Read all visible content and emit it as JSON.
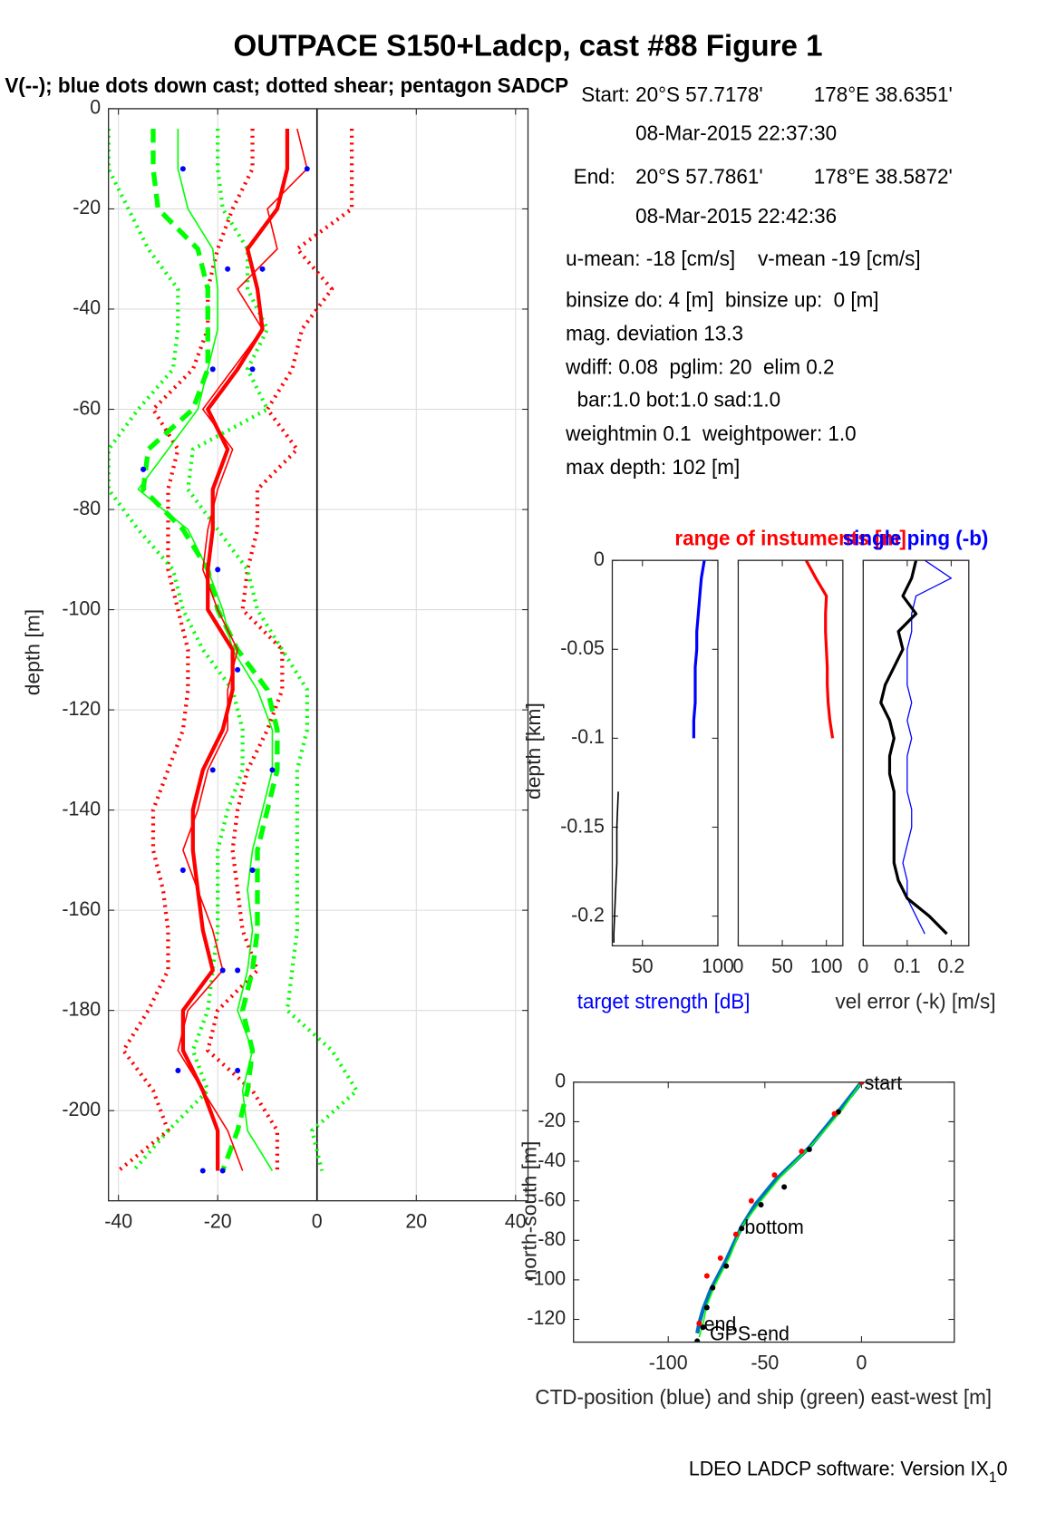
{
  "annotations": [
    "Start:",
    "20°S 57.7178'",
    "178°E 38.6351'",
    "08-Mar-2015 22:37:30",
    "End:",
    "20°S 57.7861'",
    "178°E 38.5872'",
    "08-Mar-2015 22:42:36",
    "u-mean: -18 [cm/s]    v-mean -19 [cm/s]",
    "binsize do: 4 [m]  binsize up:  0 [m]",
    "mag. deviation 13.3",
    "wdiff: 0.08  pglim: 20  elim 0.2",
    "  bar:1.0 bot:1.0 sad:1.0",
    "weightmin 0.1  weightpower: 1.0",
    "max depth: 102 [m]"
  ],
  "footer": "LDEO LADCP software: Version IX",
  "footer_sub": "1",
  "footer_tail": "0",
  "chart_data": [
    {
      "type": "profile",
      "title": "OUTPACE S150+Ladcp, cast #88  Figure 1",
      "subtitle": "V(--); blue dots down cast; dotted shear; pentagon SADCP",
      "ylabel": "depth [m]",
      "grid": true,
      "zeroline": true,
      "xlim": [
        -42,
        42.5
      ],
      "xticks": [
        -40,
        -20,
        0,
        20,
        40
      ],
      "ylim": [
        -218,
        0
      ],
      "yticks": [
        0,
        -20,
        -40,
        -60,
        -80,
        -100,
        -120,
        -140,
        -160,
        -180,
        -200
      ],
      "depth": [
        -4,
        -12,
        -20,
        -28,
        -36,
        -44,
        -52,
        -60,
        -68,
        -76,
        -84,
        -92,
        -100,
        -108,
        -116,
        -124,
        -132,
        -140,
        -148,
        -156,
        -164,
        -172,
        -180,
        -188,
        -196,
        -204,
        -212
      ],
      "series": [
        {
          "color": "#ff0000",
          "style": "dotted",
          "width": 4,
          "values": [
            -13,
            -13,
            -17,
            -20,
            -22,
            -22,
            -25,
            -33,
            -28,
            -30,
            -30,
            -30,
            -28,
            -26,
            -26,
            -27,
            -30,
            -33,
            -33,
            -31,
            -30,
            -30,
            -34,
            -39,
            -33,
            -30,
            -40
          ]
        },
        {
          "color": "#ff0000",
          "style": "dotted",
          "width": 4,
          "values": [
            7,
            7,
            7,
            -4,
            3,
            -3,
            -5,
            -10,
            -4,
            -12,
            -12,
            -14,
            -15,
            -7,
            -7,
            -10,
            -14,
            -16,
            -17,
            -16,
            -15,
            -12,
            -20,
            -22,
            -13,
            -8,
            -8
          ]
        },
        {
          "color": "#00ff00",
          "style": "dotted",
          "width": 4,
          "values": [
            -42,
            -42,
            -38,
            -34,
            -28,
            -28,
            -29,
            -36,
            -42,
            -42,
            -36,
            -29,
            -27,
            -23,
            -17,
            -15,
            -15,
            -18,
            -20,
            -20,
            -20,
            -21,
            -22,
            -25,
            -22,
            -30,
            -37
          ]
        },
        {
          "color": "#00ff00",
          "style": "dotted",
          "width": 4,
          "values": [
            -20,
            -20,
            -19,
            -14,
            -14,
            -10,
            -14,
            -10,
            -25,
            -26,
            -20,
            -14,
            -12,
            -7,
            -2,
            -2,
            -4,
            -4,
            -4,
            -4,
            -4,
            -5,
            -6,
            3,
            8,
            -1,
            1
          ]
        },
        {
          "color": "#00ff00",
          "style": "solid",
          "width": 1.5,
          "values": [
            -28,
            -28,
            -26,
            -21,
            -20,
            -20,
            -22,
            -24,
            -30,
            -36,
            -26,
            -22,
            -19,
            -17,
            -12,
            -9,
            -9,
            -11,
            -13,
            -14,
            -13,
            -14,
            -16,
            -13,
            -15,
            -14,
            -9
          ]
        },
        {
          "color": "#00ff00",
          "style": "dashed",
          "width": 5,
          "values": [
            -33,
            -33,
            -32,
            -24,
            -22,
            -22,
            -22,
            -25,
            -34,
            -35,
            -27,
            -22,
            -20,
            -16,
            -10,
            -8,
            -8,
            -10,
            -12,
            -12,
            -12,
            -13,
            -15,
            -13,
            -14,
            -16,
            -19
          ]
        },
        {
          "color": "#ff0000",
          "style": "solid",
          "width": 1.5,
          "values": [
            -4,
            -2,
            -10,
            -8,
            -16,
            -11,
            -17,
            -23,
            -17,
            -20,
            -22,
            -23,
            -20,
            -16,
            -18,
            -18,
            -22,
            -24,
            -27,
            -24,
            -21,
            -19,
            -26,
            -28,
            -23,
            -18,
            -15
          ]
        },
        {
          "color": "#ff0000",
          "style": "solid",
          "width": 4,
          "values": [
            -6,
            -6,
            -8,
            -14,
            -12,
            -11,
            -16,
            -22,
            -18,
            -21,
            -21,
            -22,
            -22,
            -17,
            -17,
            -19,
            -23,
            -25,
            -25,
            -24,
            -23,
            -21,
            -27,
            -27,
            -23,
            -20,
            -20
          ]
        },
        {
          "color": "#0000ff",
          "marker": "dot",
          "depth": [
            -12,
            -12,
            -32,
            -32,
            -52,
            -52,
            -72,
            -92,
            -112,
            -132,
            -132,
            -152,
            -152,
            -172,
            -172,
            -192,
            -192,
            -212,
            -212
          ],
          "values": [
            -27,
            -2,
            -18,
            -11,
            -21,
            -13,
            -35,
            -20,
            -16,
            -21,
            -9,
            -27,
            -13,
            -19,
            -16,
            -28,
            -16,
            -23,
            -19
          ]
        }
      ]
    },
    {
      "type": "profile",
      "ylabel": "depth [km]",
      "xlabel": "target strength [dB]",
      "xlabel_color": "#0000ff",
      "xlim": [
        30,
        100
      ],
      "xticks": [
        50,
        100
      ],
      "ylim": [
        -0.2167,
        0
      ],
      "yticks": [
        0,
        -0.05,
        -0.1,
        -0.15,
        -0.2
      ],
      "series": [
        {
          "color": "#0000ff",
          "style": "solid",
          "width": 3,
          "depth": [
            0,
            -0.01,
            -0.02,
            -0.03,
            -0.04,
            -0.05,
            -0.06,
            -0.07,
            -0.08,
            -0.09,
            -0.1
          ],
          "values": [
            91,
            89,
            88,
            87,
            86,
            86,
            85,
            85,
            85,
            84,
            84
          ]
        },
        {
          "color": "#000000",
          "style": "solid",
          "width": 1.5,
          "depth": [
            -0.13,
            -0.15,
            -0.17,
            -0.19,
            -0.21,
            -0.215
          ],
          "values": [
            34,
            33,
            33,
            32,
            31,
            31
          ]
        }
      ]
    },
    {
      "type": "profile",
      "title": "range of instuments [m]",
      "title_color": "#ff0000",
      "xlim": [
        0,
        118.7
      ],
      "xticks": [
        0,
        50,
        100
      ],
      "ylim": [
        -0.2167,
        0
      ],
      "series": [
        {
          "color": "#ff0000",
          "style": "solid",
          "width": 3,
          "depth": [
            0,
            -0.01,
            -0.02,
            -0.03,
            -0.04,
            -0.05,
            -0.06,
            -0.07,
            -0.08,
            -0.09,
            -0.1
          ],
          "values": [
            77,
            88,
            100,
            99,
            99,
            100,
            101,
            101,
            102,
            104,
            107
          ]
        }
      ]
    },
    {
      "type": "profile",
      "title": "single ping (-b)",
      "title_color": "#0000ff",
      "xlabel": "vel error (-k) [m/s]",
      "xlim": [
        0,
        0.24
      ],
      "xticks": [
        0,
        0.1,
        0.2
      ],
      "ylim": [
        -0.2167,
        0
      ],
      "depth": [
        0,
        -0.01,
        -0.02,
        -0.03,
        -0.04,
        -0.05,
        -0.06,
        -0.07,
        -0.08,
        -0.09,
        -0.1,
        -0.11,
        -0.12,
        -0.13,
        -0.14,
        -0.15,
        -0.16,
        -0.17,
        -0.18,
        -0.19,
        -0.2,
        -0.21
      ],
      "series": [
        {
          "color": "#0000ff",
          "style": "solid",
          "width": 1.2,
          "values": [
            0.14,
            0.2,
            0.12,
            0.11,
            0.11,
            0.1,
            0.1,
            0.1,
            0.11,
            0.1,
            0.11,
            0.1,
            0.1,
            0.1,
            0.11,
            0.11,
            0.1,
            0.09,
            0.1,
            0.1,
            0.12,
            0.14
          ]
        },
        {
          "color": "#000000",
          "style": "solid",
          "width": 3,
          "values": [
            0.12,
            0.11,
            0.09,
            0.12,
            0.08,
            0.09,
            0.07,
            0.05,
            0.04,
            0.06,
            0.07,
            0.06,
            0.06,
            0.07,
            0.07,
            0.07,
            0.07,
            0.07,
            0.08,
            0.1,
            0.15,
            0.19
          ]
        }
      ]
    },
    {
      "type": "line",
      "xlabel": "CTD-position (blue) and ship (green) east-west [m]",
      "ylabel": "north-south [m]",
      "xlim": [
        -149,
        48
      ],
      "xticks": [
        -100,
        -50,
        0
      ],
      "ylim": [
        -131.5,
        0
      ],
      "yticks": [
        0,
        -20,
        -40,
        -60,
        -80,
        -100,
        -120
      ],
      "series": [
        {
          "color": "#0072bd",
          "style": "solid",
          "width": 4,
          "x": [
            0,
            -12,
            -27,
            -45,
            -55,
            -62,
            -70,
            -78,
            -82,
            -84,
            -85
          ],
          "values": [
            0,
            -15,
            -33,
            -50,
            -62,
            -73,
            -90,
            -105,
            -115,
            -122,
            -127
          ]
        },
        {
          "color": "#00ff00",
          "style": "solid",
          "width": 1.5,
          "x": [
            0,
            -10,
            -25,
            -42,
            -52,
            -62,
            -68,
            -76,
            -80,
            -82,
            -84
          ],
          "values": [
            0,
            -14,
            -31,
            -48,
            -60,
            -73,
            -88,
            -103,
            -113,
            -122,
            -129
          ]
        },
        {
          "color": "#000000",
          "marker": "dot",
          "x": [
            0,
            -12,
            -27,
            -40,
            -52,
            -62,
            -70,
            -77,
            -80,
            -82,
            -85
          ],
          "values": [
            0,
            -15,
            -34,
            -53,
            -62,
            -74,
            -93,
            -104,
            -114,
            -124,
            -131
          ]
        },
        {
          "color": "#ff0000",
          "marker": "dot",
          "x": [
            0,
            -14,
            -31,
            -45,
            -57,
            -65,
            -73,
            -80,
            -84
          ],
          "values": [
            0,
            -16,
            -35,
            -47,
            -60,
            -77,
            -89,
            -98,
            -122
          ]
        }
      ],
      "labels": [
        {
          "text": "start",
          "x": 0,
          "y": 0
        },
        {
          "text": "bottom",
          "x": -62,
          "y": -73
        },
        {
          "text": "end",
          "x": -83,
          "y": -122
        },
        {
          "text": "GPS-end",
          "x": -80,
          "y": -127
        }
      ]
    }
  ]
}
